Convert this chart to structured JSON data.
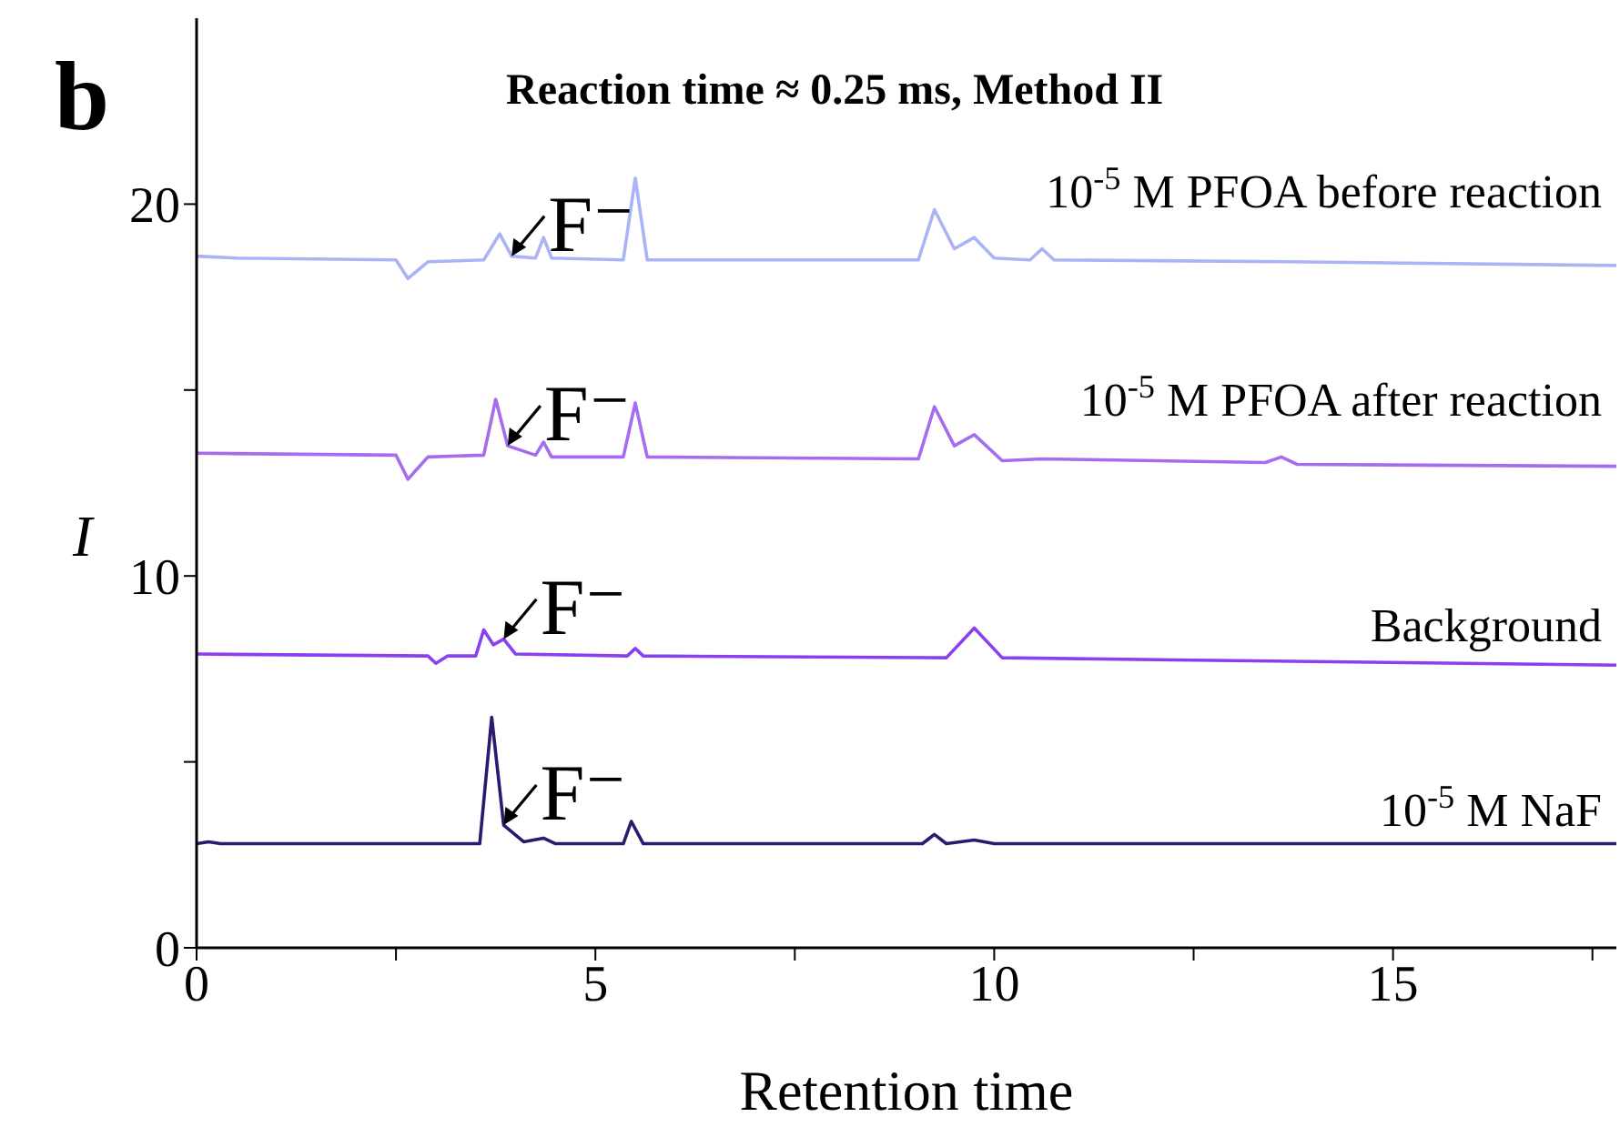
{
  "chart_data": {
    "type": "line",
    "title": "Reaction time ≈ 0.25 ms, Method II",
    "xlabel": "Retention time",
    "ylabel": "I",
    "xlim": [
      0,
      17.8
    ],
    "ylim": [
      0,
      25
    ],
    "xticks": [
      0,
      {
        "value": 2.5,
        "label": null
      },
      5,
      {
        "value": 7.5,
        "label": null
      },
      10,
      {
        "value": 12.5,
        "label": null
      },
      15,
      {
        "value": 17.5,
        "label": null
      }
    ],
    "yticks": [
      0,
      {
        "value": 5,
        "label": null
      },
      10,
      {
        "value": 15,
        "label": null
      },
      20
    ],
    "annotations": [
      "b",
      {
        "text": "F⁻",
        "x": 3.95,
        "y": 18.6
      },
      {
        "text": "F⁻",
        "x": 3.9,
        "y": 13.5
      },
      {
        "text": "F⁻",
        "x": 3.85,
        "y": 8.3
      },
      {
        "text": "F⁻",
        "x": 3.85,
        "y": 3.3
      }
    ],
    "series": [
      {
        "name": "10$^{-5}$ M PFOA before reaction",
        "color": "#aab4f5",
        "x": [
          0,
          0.5,
          2.5,
          2.65,
          2.9,
          3.6,
          3.8,
          3.95,
          4.25,
          4.35,
          4.45,
          5.35,
          5.5,
          5.65,
          9.05,
          9.25,
          9.5,
          9.75,
          10.0,
          10.45,
          10.6,
          10.75,
          13.7,
          17.8
        ],
        "values": [
          18.6,
          18.55,
          18.5,
          18.0,
          18.45,
          18.5,
          19.2,
          18.6,
          18.55,
          19.1,
          18.55,
          18.5,
          20.7,
          18.5,
          18.5,
          19.85,
          18.8,
          19.1,
          18.55,
          18.5,
          18.8,
          18.5,
          18.45,
          18.35
        ]
      },
      {
        "name": "10$^{-5}$ M PFOA after reaction",
        "color": "#a66cf0",
        "x": [
          0,
          2.5,
          2.65,
          2.9,
          3.6,
          3.75,
          3.9,
          4.25,
          4.35,
          4.45,
          5.35,
          5.5,
          5.65,
          9.05,
          9.25,
          9.5,
          9.75,
          10.1,
          10.6,
          13.4,
          13.6,
          13.8,
          17.8
        ],
        "values": [
          13.3,
          13.25,
          12.6,
          13.2,
          13.25,
          14.75,
          13.5,
          13.25,
          13.6,
          13.2,
          13.2,
          14.65,
          13.2,
          13.15,
          14.55,
          13.5,
          13.8,
          13.1,
          13.15,
          13.05,
          13.2,
          13.0,
          12.95
        ]
      },
      {
        "name": "Background",
        "color": "#8c3ff0",
        "x": [
          0,
          2.9,
          3.0,
          3.15,
          3.5,
          3.6,
          3.72,
          3.85,
          4.0,
          5.4,
          5.5,
          5.6,
          9.4,
          9.75,
          10.1,
          17.8
        ],
        "values": [
          7.9,
          7.85,
          7.65,
          7.85,
          7.85,
          8.55,
          8.15,
          8.3,
          7.9,
          7.85,
          8.05,
          7.85,
          7.8,
          8.6,
          7.8,
          7.6
        ]
      },
      {
        "name": "10$^{-5}$ M NaF",
        "color": "#2d1a6e",
        "x": [
          0,
          0.15,
          0.3,
          3.55,
          3.7,
          3.85,
          4.1,
          4.35,
          4.5,
          5.35,
          5.45,
          5.6,
          9.1,
          9.25,
          9.4,
          9.75,
          10.0,
          17.8
        ],
        "values": [
          2.8,
          2.85,
          2.8,
          2.8,
          6.2,
          3.3,
          2.85,
          2.95,
          2.8,
          2.8,
          3.4,
          2.8,
          2.8,
          3.05,
          2.8,
          2.9,
          2.8,
          2.8
        ]
      }
    ]
  }
}
